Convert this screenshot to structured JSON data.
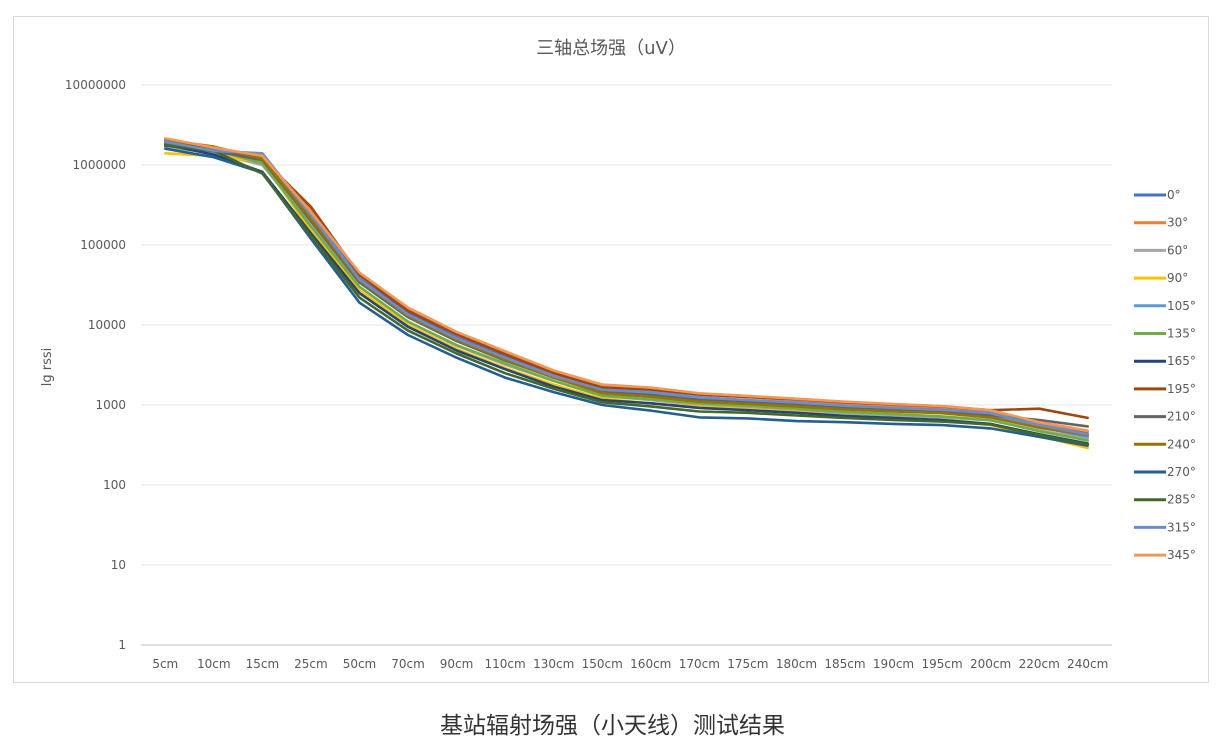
{
  "caption": "基站辐射场强（小天线）测试结果",
  "chart_data": {
    "type": "line",
    "title": "三轴总场强（uV）",
    "xlabel": "",
    "ylabel": "lg rssi",
    "y_scale": "log",
    "ylim": [
      1,
      10000000
    ],
    "y_ticks": [
      "1",
      "10",
      "100",
      "1000",
      "10000",
      "100000",
      "1000000",
      "10000000"
    ],
    "grid": "horizontal",
    "legend_position": "right",
    "categories": [
      "5cm",
      "10cm",
      "15cm",
      "25cm",
      "50cm",
      "70cm",
      "90cm",
      "110cm",
      "130cm",
      "150cm",
      "160cm",
      "170cm",
      "175cm",
      "180cm",
      "185cm",
      "190cm",
      "195cm",
      "200cm",
      "220cm",
      "240cm"
    ],
    "series": [
      {
        "name": "0°",
        "color": "#4472C4",
        "values": [
          1900000,
          1400000,
          1300000,
          250000,
          38000,
          14000,
          7000,
          4000,
          2300,
          1500,
          1400,
          1200,
          1100,
          1050,
          950,
          900,
          860,
          760,
          560,
          440
        ]
      },
      {
        "name": "30°",
        "color": "#ED7D31",
        "values": [
          2100000,
          1600000,
          1250000,
          270000,
          44000,
          16000,
          8000,
          4500,
          2600,
          1750,
          1600,
          1350,
          1250,
          1150,
          1050,
          980,
          920,
          820,
          600,
          470
        ]
      },
      {
        "name": "60°",
        "color": "#A5A5A5",
        "values": [
          1700000,
          1400000,
          1000000,
          180000,
          30000,
          11000,
          5500,
          3200,
          2000,
          1300,
          1150,
          1000,
          930,
          870,
          790,
          740,
          700,
          640,
          480,
          380
        ]
      },
      {
        "name": "90°",
        "color": "#FFC000",
        "values": [
          1400000,
          1300000,
          1100000,
          150000,
          27000,
          10000,
          5000,
          2900,
          1800,
          1200,
          1050,
          950,
          880,
          820,
          730,
          680,
          640,
          560,
          410,
          290
        ]
      },
      {
        "name": "105°",
        "color": "#5B9BD5",
        "values": [
          1800000,
          1450000,
          1350000,
          220000,
          36000,
          13000,
          6600,
          3800,
          2200,
          1500,
          1380,
          1200,
          1100,
          1030,
          920,
          870,
          820,
          730,
          530,
          400
        ]
      },
      {
        "name": "135°",
        "color": "#70AD47",
        "values": [
          1750000,
          1550000,
          1050000,
          170000,
          30000,
          11000,
          5600,
          3300,
          2000,
          1300,
          1180,
          1050,
          980,
          900,
          820,
          770,
          720,
          650,
          470,
          360
        ]
      },
      {
        "name": "165°",
        "color": "#264478",
        "values": [
          1800000,
          1350000,
          820000,
          140000,
          25000,
          9500,
          4800,
          2800,
          1700,
          1150,
          1050,
          920,
          860,
          800,
          730,
          690,
          650,
          580,
          430,
          330
        ]
      },
      {
        "name": "195°",
        "color": "#9E480E",
        "values": [
          2000000,
          1650000,
          1200000,
          300000,
          42000,
          15000,
          7600,
          4300,
          2500,
          1650,
          1550,
          1350,
          1260,
          1180,
          1080,
          1020,
          960,
          860,
          900,
          690
        ]
      },
      {
        "name": "210°",
        "color": "#636363",
        "values": [
          1850000,
          1500000,
          1150000,
          200000,
          34000,
          12500,
          6300,
          3600,
          2200,
          1450,
          1330,
          1150,
          1080,
          1000,
          910,
          860,
          820,
          740,
          650,
          540
        ]
      },
      {
        "name": "240°",
        "color": "#997300",
        "values": [
          2050000,
          1700000,
          1200000,
          210000,
          36000,
          13000,
          6500,
          3700,
          2200,
          1400,
          1270,
          1100,
          1030,
          960,
          880,
          830,
          790,
          700,
          520,
          420
        ]
      },
      {
        "name": "270°",
        "color": "#255E91",
        "values": [
          1600000,
          1250000,
          800000,
          120000,
          19000,
          7500,
          3900,
          2200,
          1450,
          1000,
          850,
          700,
          680,
          630,
          610,
          580,
          560,
          510,
          400,
          310
        ]
      },
      {
        "name": "285°",
        "color": "#43682B",
        "values": [
          1750000,
          1500000,
          780000,
          130000,
          22000,
          8500,
          4400,
          2500,
          1600,
          1080,
          960,
          830,
          800,
          740,
          690,
          650,
          620,
          570,
          420,
          320
        ]
      },
      {
        "name": "315°",
        "color": "#698ED0",
        "values": [
          1950000,
          1500000,
          1400000,
          240000,
          37000,
          13500,
          6800,
          3900,
          2300,
          1550,
          1450,
          1250,
          1150,
          1080,
          980,
          920,
          870,
          790,
          560,
          430
        ]
      },
      {
        "name": "345°",
        "color": "#F1975A",
        "values": [
          2150000,
          1650000,
          1300000,
          260000,
          45000,
          16500,
          8200,
          4700,
          2700,
          1800,
          1650,
          1400,
          1300,
          1200,
          1100,
          1030,
          970,
          860,
          610,
          480
        ]
      }
    ]
  }
}
